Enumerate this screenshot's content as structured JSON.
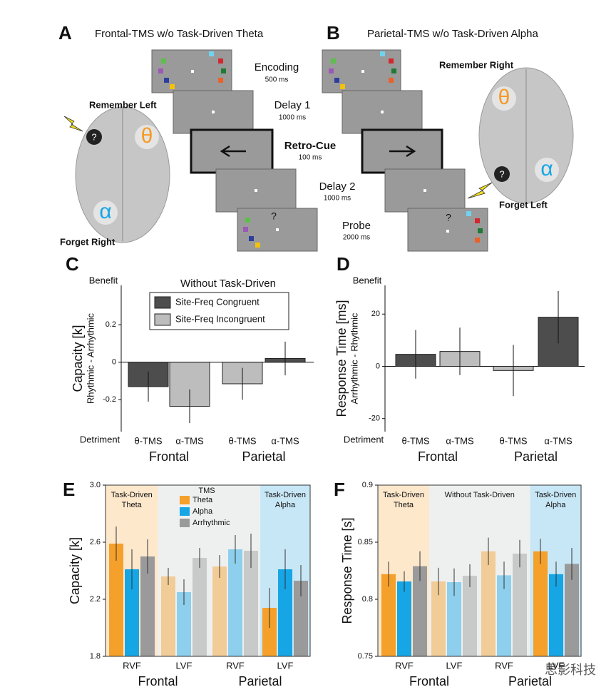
{
  "panels": {
    "A": {
      "letter": "A",
      "title": "Frontal-TMS w/o Task-Driven Theta",
      "remember": "Remember Left",
      "forget": "Forget Right",
      "theta": "θ",
      "alpha": "α",
      "tms_site": "?",
      "probe_mark": "?"
    },
    "B": {
      "letter": "B",
      "title": "Parietal-TMS w/o Task-Driven Alpha",
      "remember": "Remember Right",
      "forget": "Forget Left",
      "theta": "θ",
      "alpha": "α",
      "tms_site": "?",
      "probe_mark": "?"
    },
    "timeline": [
      {
        "name": "Encoding",
        "duration": "500 ms"
      },
      {
        "name": "Delay 1",
        "duration": "1000 ms"
      },
      {
        "name": "Retro-Cue",
        "duration": "100 ms"
      },
      {
        "name": "Delay 2",
        "duration": "1000 ms"
      },
      {
        "name": "Probe",
        "duration": "2000 ms"
      }
    ]
  },
  "watermark": "思影科技",
  "chart_data": [
    {
      "type": "bar",
      "letter": "C",
      "title": "Without Task-Driven",
      "y_label": "Capacity [k]",
      "y_sublabel": "Rhythmic - Arrhythmic",
      "top_note": "Benefit",
      "bottom_note": "Detriment",
      "categories": [
        "θ-TMS",
        "α-TMS",
        "θ-TMS",
        "α-TMS"
      ],
      "groups": [
        "Frontal",
        "Parietal"
      ],
      "values": [
        -0.13,
        -0.235,
        -0.115,
        0.02
      ],
      "errors": [
        0.08,
        0.09,
        0.085,
        0.09
      ],
      "colors": [
        "#4d4d4d",
        "#bdbdbd",
        "#bdbdbd",
        "#4d4d4d"
      ],
      "legend": [
        {
          "label": "Site-Freq Congruent",
          "color": "#4d4d4d"
        },
        {
          "label": "Site-Freq Incongruent",
          "color": "#bdbdbd"
        }
      ],
      "ylim": [
        -0.37,
        0.41
      ],
      "yticks": [
        -0.2,
        0,
        0.2
      ]
    },
    {
      "type": "bar",
      "letter": "D",
      "y_label": "Response Time [ms]",
      "y_sublabel": "Arrhythmic - Rhythmic",
      "top_note": "Benefit",
      "bottom_note": "Detriment",
      "categories": [
        "θ-TMS",
        "α-TMS",
        "θ-TMS",
        "α-TMS"
      ],
      "groups": [
        "Frontal",
        "Parietal"
      ],
      "values": [
        4.6,
        5.7,
        -1.6,
        18.8
      ],
      "errors": [
        9.3,
        9.1,
        9.8,
        10
      ],
      "colors": [
        "#4d4d4d",
        "#bdbdbd",
        "#bdbdbd",
        "#4d4d4d"
      ],
      "ylim": [
        -25,
        31
      ],
      "yticks": [
        -20,
        0,
        20
      ]
    },
    {
      "type": "grouped_bar",
      "letter": "E",
      "y_label": "Capacity [k]",
      "legend_title": "TMS",
      "categories": [
        "RVF",
        "LVF",
        "RVF",
        "LVF"
      ],
      "groups": [
        "Frontal",
        "Parietal"
      ],
      "series": [
        {
          "name": "Theta",
          "color": "#f5a02a",
          "values": [
            2.59,
            2.36,
            2.43,
            2.14
          ],
          "errors": [
            0.12,
            0.06,
            0.08,
            0.14
          ]
        },
        {
          "name": "Alpha",
          "color": "#16a6e6",
          "values": [
            2.41,
            2.25,
            2.55,
            2.41
          ],
          "errors": [
            0.14,
            0.09,
            0.1,
            0.14
          ]
        },
        {
          "name": "Arrhythmic",
          "color": "#9a9a9a",
          "values": [
            2.5,
            2.49,
            2.54,
            2.33
          ],
          "errors": [
            0.12,
            0.07,
            0.12,
            0.11
          ]
        }
      ],
      "regions": [
        {
          "label_lines": [
            "Task-Driven",
            "Theta"
          ],
          "color": "#fde8cc",
          "span": [
            0,
            0
          ]
        },
        {
          "color": "#eef0f0",
          "span": [
            1,
            2
          ],
          "muted": true
        },
        {
          "label_lines": [
            "Task-Driven",
            "Alpha"
          ],
          "color": "#c8e7f6",
          "span": [
            3,
            3
          ]
        }
      ],
      "ylim": [
        1.8,
        3.0
      ],
      "yticks": [
        1.8,
        2.2,
        2.6,
        {
          "value": 3.0,
          "label": "3.0"
        }
      ]
    },
    {
      "type": "grouped_bar",
      "letter": "F",
      "y_label": "Response Time [s]",
      "categories": [
        "RVF",
        "LVF",
        "RVF",
        "LVF"
      ],
      "groups": [
        "Frontal",
        "Parietal"
      ],
      "series": [
        {
          "name": "Theta",
          "color": "#f5a02a",
          "values": [
            0.822,
            0.8156,
            0.842,
            0.842
          ],
          "errors": [
            0.011,
            0.012,
            0.012,
            0.011
          ]
        },
        {
          "name": "Alpha",
          "color": "#16a6e6",
          "values": [
            0.8156,
            0.815,
            0.821,
            0.822
          ],
          "errors": [
            0.009,
            0.012,
            0.012,
            0.011
          ]
        },
        {
          "name": "Arrhythmic",
          "color": "#9a9a9a",
          "values": [
            0.829,
            0.8206,
            0.84,
            0.831
          ],
          "errors": [
            0.013,
            0.01,
            0.012,
            0.014
          ]
        }
      ],
      "regions": [
        {
          "label_lines": [
            "Task-Driven",
            "Theta"
          ],
          "color": "#fde8cc",
          "span": [
            0,
            0
          ]
        },
        {
          "label_lines": [
            "Without Task-Driven"
          ],
          "color": "#eef0f0",
          "span": [
            1,
            2
          ],
          "muted": true
        },
        {
          "label_lines": [
            "Task-Driven",
            "Alpha"
          ],
          "color": "#c8e7f6",
          "span": [
            3,
            3
          ]
        }
      ],
      "ylim": [
        0.75,
        0.9
      ],
      "yticks": [
        0.75,
        0.8,
        0.85,
        0.9
      ]
    }
  ]
}
